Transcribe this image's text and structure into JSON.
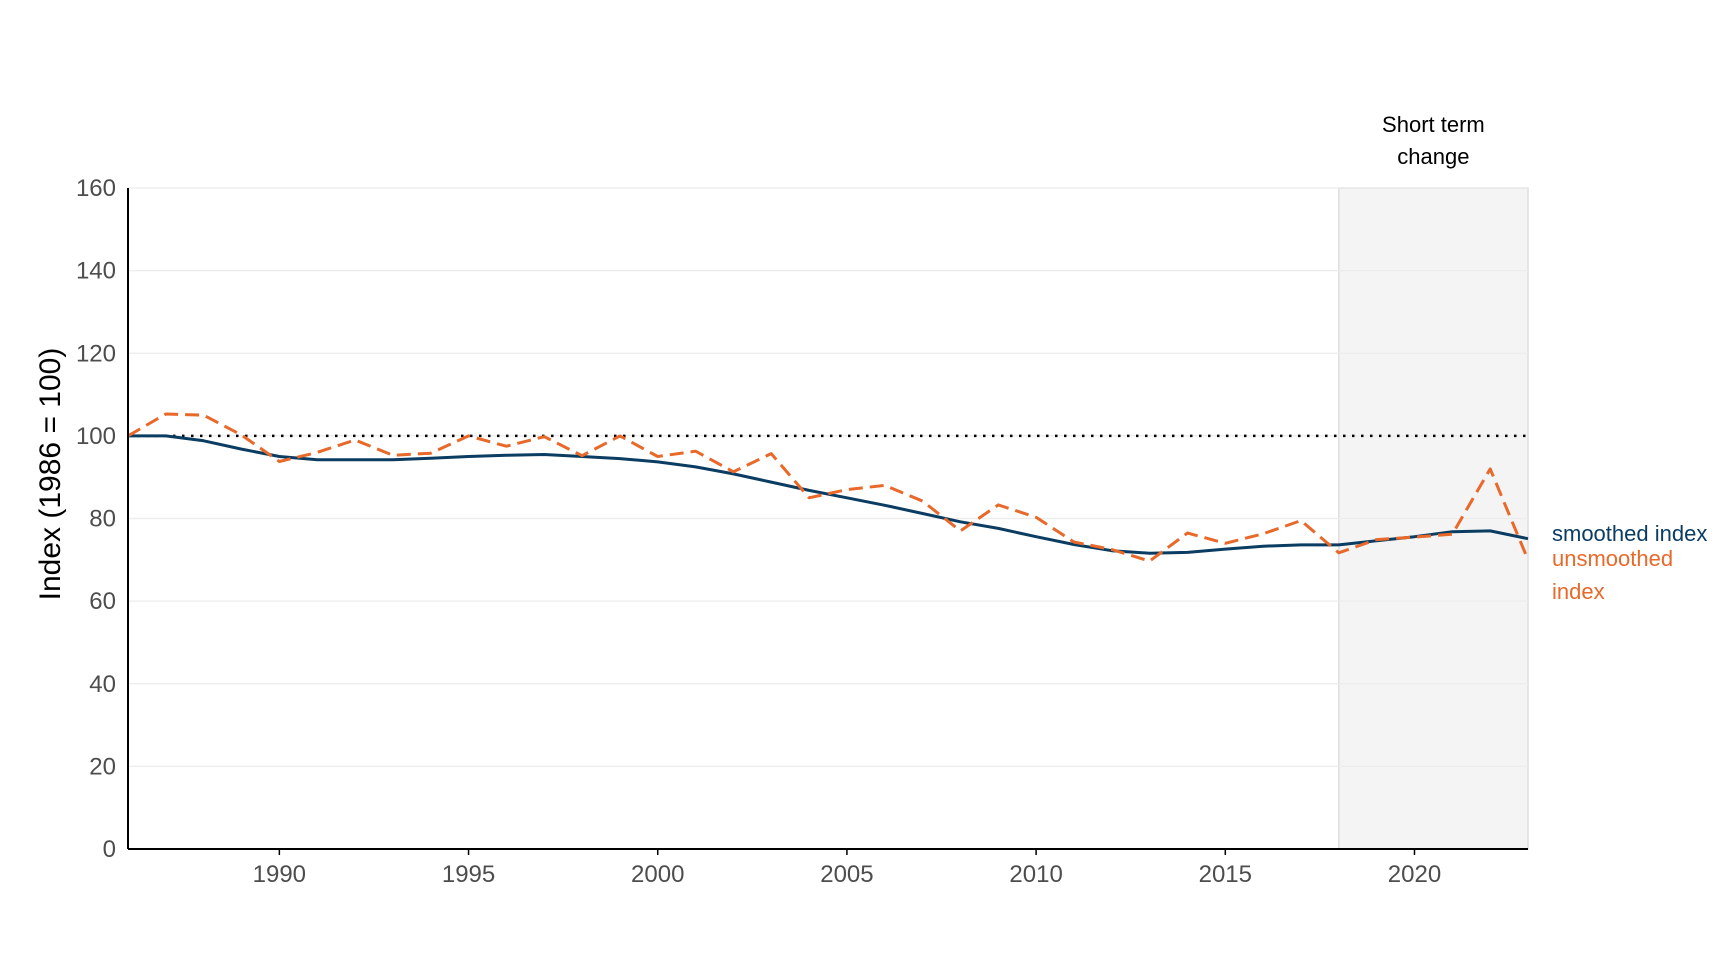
{
  "chart_data": {
    "type": "line",
    "title": "",
    "xlabel": "",
    "ylabel": "Index (1986 = 100)",
    "xlim": [
      1986,
      2023
    ],
    "ylim": [
      0,
      160
    ],
    "x_ticks": [
      1990,
      1995,
      2000,
      2005,
      2010,
      2015,
      2020
    ],
    "y_ticks": [
      0,
      20,
      40,
      60,
      80,
      100,
      120,
      140,
      160
    ],
    "grid": "horizontal",
    "reference_line": {
      "y": 100,
      "style": "dotted"
    },
    "shaded_region": {
      "x_start": 2018,
      "x_end": 2023,
      "label_line1": "Short term",
      "label_line2": "change"
    },
    "x": [
      1986,
      1987,
      1988,
      1989,
      1990,
      1991,
      1992,
      1993,
      1994,
      1995,
      1996,
      1997,
      1998,
      1999,
      2000,
      2001,
      2002,
      2003,
      2004,
      2005,
      2006,
      2007,
      2008,
      2009,
      2010,
      2011,
      2012,
      2013,
      2014,
      2015,
      2016,
      2017,
      2018,
      2019,
      2020,
      2021,
      2022,
      2023
    ],
    "series": [
      {
        "name": "smoothed index",
        "color": "#0b3c62",
        "style": "solid",
        "values": [
          100,
          100,
          98.8,
          96.8,
          95,
          94.2,
          94.2,
          94.2,
          94.6,
          95,
          95.3,
          95.5,
          95,
          94.5,
          93.7,
          92.5,
          90.8,
          88.8,
          86.8,
          85,
          83.2,
          81.2,
          79.2,
          77.6,
          75.6,
          73.7,
          72.2,
          71.6,
          71.8,
          72.6,
          73.3,
          73.6,
          73.6,
          74.6,
          75.6,
          76.8,
          77,
          75.1
        ]
      },
      {
        "name": "unsmoothed index",
        "label_line1": "unsmoothed",
        "label_line2": "index",
        "color": "#e8692a",
        "style": "dashed",
        "values": [
          100,
          105.3,
          105,
          100.2,
          93.8,
          96,
          99,
          95.3,
          95.8,
          100,
          97.5,
          99.8,
          95.2,
          100,
          95,
          96.3,
          91.3,
          95.7,
          85,
          87,
          88,
          84.2,
          77,
          83.3,
          80.3,
          74.3,
          72.5,
          69.7,
          76.5,
          74,
          76.3,
          79.5,
          71.7,
          74.9,
          75.5,
          76.2,
          92,
          70
        ]
      }
    ]
  }
}
